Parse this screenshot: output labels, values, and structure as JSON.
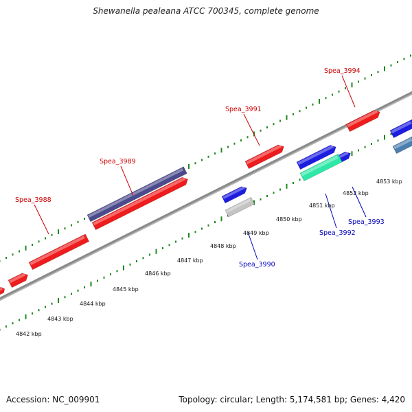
{
  "title": "Shewanella pealeana ATCC 700345, complete genome",
  "footer": {
    "accession": "Accession: NC_009901",
    "topology": "Topology: circular; Length: 5,174,581 bp; Genes: 4,420"
  },
  "colors": {
    "forward_gene": "#ee1c1c",
    "reverse_gene": "#1d1de0",
    "rna_gene": "#2ee8a8",
    "pseudo_gene": "#c4c4c4",
    "other_gene": "#4a7faf",
    "operon": "#4a4a8c",
    "tick": "#1e8a1e",
    "backbone": "#8a8a8a",
    "label_forward": "#cc0000",
    "label_reverse": "#0000bb"
  },
  "kbp_labels": [
    "4842 kbp",
    "4843 kbp",
    "4844 kbp",
    "4845 kbp",
    "4846 kbp",
    "4847 kbp",
    "4848 kbp",
    "4849 kbp",
    "4850 kbp",
    "4851 kbp",
    "4852 kbp",
    "4853 kbp"
  ],
  "gene_labels": [
    {
      "text": "Spea_3988",
      "strand": "forward"
    },
    {
      "text": "Spea_3989",
      "strand": "forward"
    },
    {
      "text": "Spea_3991",
      "strand": "forward"
    },
    {
      "text": "Spea_3994",
      "strand": "forward"
    },
    {
      "text": "Spea_3990",
      "strand": "reverse"
    },
    {
      "text": "Spea_3992",
      "strand": "reverse"
    },
    {
      "text": "Spea_3993",
      "strand": "reverse"
    }
  ]
}
